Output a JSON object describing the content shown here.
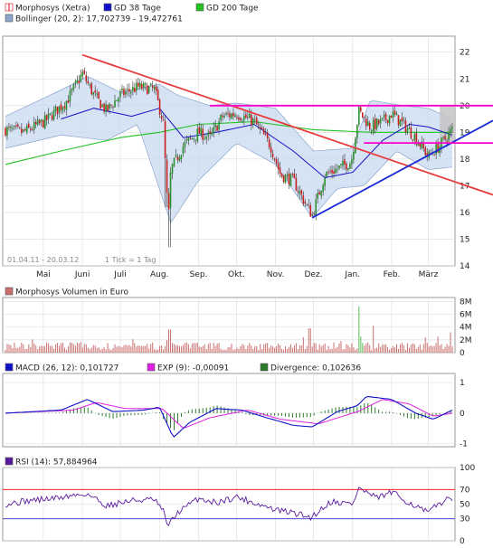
{
  "colors": {
    "background": "#ffffff",
    "panel_border": "#9a9a9a",
    "grid": "#dcdcdc",
    "candle_up": "#2a8f2a",
    "candle_down": "#c81e1e",
    "candle_wick": "#333333",
    "sma38": "#1010c8",
    "sma200": "#22c222",
    "bollinger_fill": "#c8d9f0",
    "bollinger_edge": "#8aa4cc",
    "trend_red": "#e63c3c",
    "trend_blue": "#1a2bd6",
    "resistance": "#ff00cc",
    "shaded_zone": "#c4c4c4",
    "volume": "#cc6f6f",
    "volume_hi": "#55bb55",
    "macd": "#1010c8",
    "signal": "#e020e0",
    "divergence": "#2a7a2a",
    "rsi": "#5a1aa0",
    "rsi_70_line": "#ff0000",
    "rsi_30_line": "#3030c8"
  },
  "chart_data": [
    {
      "type": "candlestick",
      "title": "",
      "legend": [
        {
          "label": "Morphosys (Xetra)",
          "color": "#d01010",
          "swatch": "candle"
        },
        {
          "label": "GD 38 Tage",
          "color": "#1010c8",
          "swatch": "square"
        },
        {
          "label": "GD 200 Tage",
          "color": "#22c222",
          "swatch": "square"
        },
        {
          "label": "Bollinger (20, 2): 17,702739 - 19,472761",
          "color": "#8aa4cc",
          "swatch": "square"
        }
      ],
      "date_range_note": "01.04.11 - 20.03.12",
      "tick_note": "1 Tick = 1 Tag",
      "x_categories": [
        "Mai",
        "Juni",
        "Juli",
        "Aug.",
        "Sep.",
        "Okt.",
        "Nov.",
        "Dez.",
        "Jan.",
        "Feb.",
        "März"
      ],
      "y_ticks": [
        14,
        15,
        16,
        17,
        18,
        19,
        20,
        21,
        22
      ],
      "ylim": [
        14,
        22.6
      ],
      "grid": true,
      "axis_side": "right",
      "price_path": [
        [
          "2011-04-01",
          19.1
        ],
        [
          "2011-04-15",
          19.0
        ],
        [
          "2011-05-02",
          19.4
        ],
        [
          "2011-05-20",
          20.2
        ],
        [
          "2011-06-01",
          21.2
        ],
        [
          "2011-06-10",
          20.4
        ],
        [
          "2011-06-20",
          19.8
        ],
        [
          "2011-07-01",
          20.4
        ],
        [
          "2011-07-15",
          20.7
        ],
        [
          "2011-07-28",
          20.6
        ],
        [
          "2011-08-04",
          19.4
        ],
        [
          "2011-08-08",
          15.6
        ],
        [
          "2011-08-10",
          17.6
        ],
        [
          "2011-08-20",
          18.5
        ],
        [
          "2011-09-01",
          19.0
        ],
        [
          "2011-09-10",
          18.8
        ],
        [
          "2011-09-20",
          19.6
        ],
        [
          "2011-10-01",
          19.7
        ],
        [
          "2011-10-15",
          19.4
        ],
        [
          "2011-10-28",
          18.5
        ],
        [
          "2011-11-05",
          17.4
        ],
        [
          "2011-11-15",
          17.2
        ],
        [
          "2011-11-25",
          16.3
        ],
        [
          "2011-11-30",
          15.9
        ],
        [
          "2011-12-10",
          17.4
        ],
        [
          "2011-12-31",
          17.9
        ],
        [
          "2012-01-06",
          19.8
        ],
        [
          "2012-01-15",
          19.2
        ],
        [
          "2012-01-25",
          19.4
        ],
        [
          "2012-02-01",
          19.7
        ],
        [
          "2012-02-10",
          19.3
        ],
        [
          "2012-02-20",
          18.8
        ],
        [
          "2012-03-01",
          18.1
        ],
        [
          "2012-03-10",
          18.5
        ],
        [
          "2012-03-20",
          19.1
        ]
      ],
      "sma38_path": [
        [
          "2011-05-15",
          19.5
        ],
        [
          "2011-06-10",
          19.9
        ],
        [
          "2011-07-10",
          19.6
        ],
        [
          "2011-08-01",
          19.9
        ],
        [
          "2011-08-20",
          18.8
        ],
        [
          "2011-09-15",
          19.0
        ],
        [
          "2011-10-15",
          19.3
        ],
        [
          "2011-11-15",
          18.3
        ],
        [
          "2011-12-10",
          17.3
        ],
        [
          "2012-01-01",
          17.5
        ],
        [
          "2012-01-25",
          18.7
        ],
        [
          "2012-02-15",
          19.3
        ],
        [
          "2012-03-01",
          19.2
        ],
        [
          "2012-03-20",
          18.9
        ]
      ],
      "sma200_path": [
        [
          "2011-04-01",
          17.8
        ],
        [
          "2011-05-15",
          18.3
        ],
        [
          "2011-07-01",
          18.8
        ],
        [
          "2011-08-01",
          19.0
        ],
        [
          "2011-09-01",
          19.3
        ],
        [
          "2011-10-15",
          19.4
        ],
        [
          "2011-12-01",
          19.1
        ],
        [
          "2012-01-15",
          19.0
        ],
        [
          "2012-03-20",
          19.0
        ]
      ],
      "bollinger_upper": [
        [
          "2011-04-01",
          19.6
        ],
        [
          "2011-05-20",
          20.7
        ],
        [
          "2011-06-05",
          21.1
        ],
        [
          "2011-07-01",
          20.5
        ],
        [
          "2011-08-01",
          20.8
        ],
        [
          "2011-08-15",
          20.4
        ],
        [
          "2011-09-10",
          20.0
        ],
        [
          "2011-10-01",
          20.1
        ],
        [
          "2011-11-01",
          19.9
        ],
        [
          "2011-12-01",
          18.3
        ],
        [
          "2012-01-01",
          18.4
        ],
        [
          "2012-01-15",
          20.2
        ],
        [
          "2012-02-10",
          20.0
        ],
        [
          "2012-03-01",
          19.9
        ],
        [
          "2012-03-20",
          19.5
        ]
      ],
      "bollinger_lower": [
        [
          "2011-04-01",
          18.4
        ],
        [
          "2011-05-15",
          18.9
        ],
        [
          "2011-06-20",
          18.7
        ],
        [
          "2011-07-15",
          19.3
        ],
        [
          "2011-08-10",
          15.6
        ],
        [
          "2011-09-01",
          17.2
        ],
        [
          "2011-10-01",
          18.6
        ],
        [
          "2011-11-01",
          17.8
        ],
        [
          "2011-11-30",
          15.8
        ],
        [
          "2011-12-20",
          16.9
        ],
        [
          "2012-01-10",
          17.0
        ],
        [
          "2012-02-05",
          18.3
        ],
        [
          "2012-03-01",
          17.6
        ],
        [
          "2012-03-20",
          17.7
        ]
      ],
      "trendlines": [
        {
          "name": "red-downtrend",
          "from": [
            "2011-06-01",
            21.9
          ],
          "to": [
            "2012-03-31",
            17.0
          ]
        },
        {
          "name": "blue-uptrend",
          "from": [
            "2011-11-30",
            15.8
          ],
          "to": [
            "2012-03-31",
            18.9
          ]
        }
      ],
      "resistance_zone": {
        "from": "2011-09-10",
        "upper": 20.0,
        "lower": 18.6
      }
    },
    {
      "type": "bar",
      "legend": [
        {
          "label": "Morphosys Volumen in Euro",
          "color": "#cc6f6f",
          "swatch": "square"
        }
      ],
      "y_ticks": [
        "0",
        "2M",
        "4M",
        "6M",
        "8M"
      ],
      "ylim": [
        0,
        8.6
      ],
      "spikes": [
        [
          "2011-08-08",
          4.4
        ],
        [
          "2011-08-09",
          3.6
        ],
        [
          "2011-11-28",
          3.8
        ],
        [
          "2012-01-06",
          7.2
        ],
        [
          "2012-01-17",
          4.2
        ],
        [
          "2012-03-19",
          3.2
        ]
      ]
    },
    {
      "type": "line",
      "legend": [
        {
          "label": "MACD (26, 12): 0,101727",
          "color": "#1010c8",
          "swatch": "square"
        },
        {
          "label": "EXP (9): -0,00091",
          "color": "#e020e0",
          "swatch": "square"
        },
        {
          "label": "Divergence: 0,102636",
          "color": "#2a7a2a",
          "swatch": "square"
        }
      ],
      "y_ticks": [
        "-1",
        "0",
        "1"
      ],
      "ylim": [
        -1.1,
        1.3
      ],
      "macd_path": [
        [
          "2011-04-01",
          0.0
        ],
        [
          "2011-05-15",
          0.1
        ],
        [
          "2011-06-05",
          0.45
        ],
        [
          "2011-06-25",
          0.05
        ],
        [
          "2011-07-20",
          0.1
        ],
        [
          "2011-08-01",
          0.2
        ],
        [
          "2011-08-12",
          -0.8
        ],
        [
          "2011-08-25",
          -0.3
        ],
        [
          "2011-09-15",
          0.15
        ],
        [
          "2011-10-05",
          0.1
        ],
        [
          "2011-10-25",
          -0.15
        ],
        [
          "2011-11-15",
          -0.4
        ],
        [
          "2011-11-30",
          -0.45
        ],
        [
          "2011-12-20",
          0.05
        ],
        [
          "2012-01-05",
          0.25
        ],
        [
          "2012-01-12",
          0.55
        ],
        [
          "2012-02-01",
          0.45
        ],
        [
          "2012-02-20",
          0.0
        ],
        [
          "2012-03-05",
          -0.2
        ],
        [
          "2012-03-20",
          0.1
        ]
      ],
      "signal_path": [
        [
          "2011-04-01",
          0.0
        ],
        [
          "2011-05-25",
          0.1
        ],
        [
          "2011-06-12",
          0.35
        ],
        [
          "2011-07-05",
          0.15
        ],
        [
          "2011-08-03",
          0.15
        ],
        [
          "2011-08-20",
          -0.5
        ],
        [
          "2011-09-10",
          -0.15
        ],
        [
          "2011-10-10",
          0.1
        ],
        [
          "2011-11-05",
          -0.2
        ],
        [
          "2011-12-05",
          -0.35
        ],
        [
          "2012-01-05",
          0.05
        ],
        [
          "2012-01-25",
          0.45
        ],
        [
          "2012-02-15",
          0.3
        ],
        [
          "2012-03-05",
          -0.1
        ],
        [
          "2012-03-20",
          0.0
        ]
      ]
    },
    {
      "type": "line",
      "legend": [
        {
          "label": "RSI (14): 57,884964",
          "color": "#5a1aa0",
          "swatch": "square"
        }
      ],
      "y_ticks": [
        "0",
        "30",
        "50",
        "70",
        "100"
      ],
      "ylim": [
        0,
        100
      ],
      "levels": [
        70,
        30
      ],
      "rsi_path": [
        [
          "2011-04-01",
          50
        ],
        [
          "2011-04-20",
          55
        ],
        [
          "2011-05-10",
          58
        ],
        [
          "2011-05-25",
          62
        ],
        [
          "2011-06-05",
          64
        ],
        [
          "2011-06-20",
          48
        ],
        [
          "2011-07-10",
          55
        ],
        [
          "2011-07-28",
          56
        ],
        [
          "2011-08-04",
          40
        ],
        [
          "2011-08-08",
          20
        ],
        [
          "2011-08-15",
          38
        ],
        [
          "2011-09-01",
          58
        ],
        [
          "2011-09-15",
          52
        ],
        [
          "2011-10-01",
          60
        ],
        [
          "2011-10-15",
          52
        ],
        [
          "2011-11-01",
          42
        ],
        [
          "2011-11-15",
          38
        ],
        [
          "2011-11-29",
          32
        ],
        [
          "2011-12-15",
          54
        ],
        [
          "2012-01-01",
          50
        ],
        [
          "2012-01-06",
          72
        ],
        [
          "2012-01-20",
          58
        ],
        [
          "2012-02-01",
          66
        ],
        [
          "2012-02-15",
          52
        ],
        [
          "2012-03-01",
          38
        ],
        [
          "2012-03-10",
          52
        ],
        [
          "2012-03-20",
          58
        ]
      ]
    }
  ]
}
